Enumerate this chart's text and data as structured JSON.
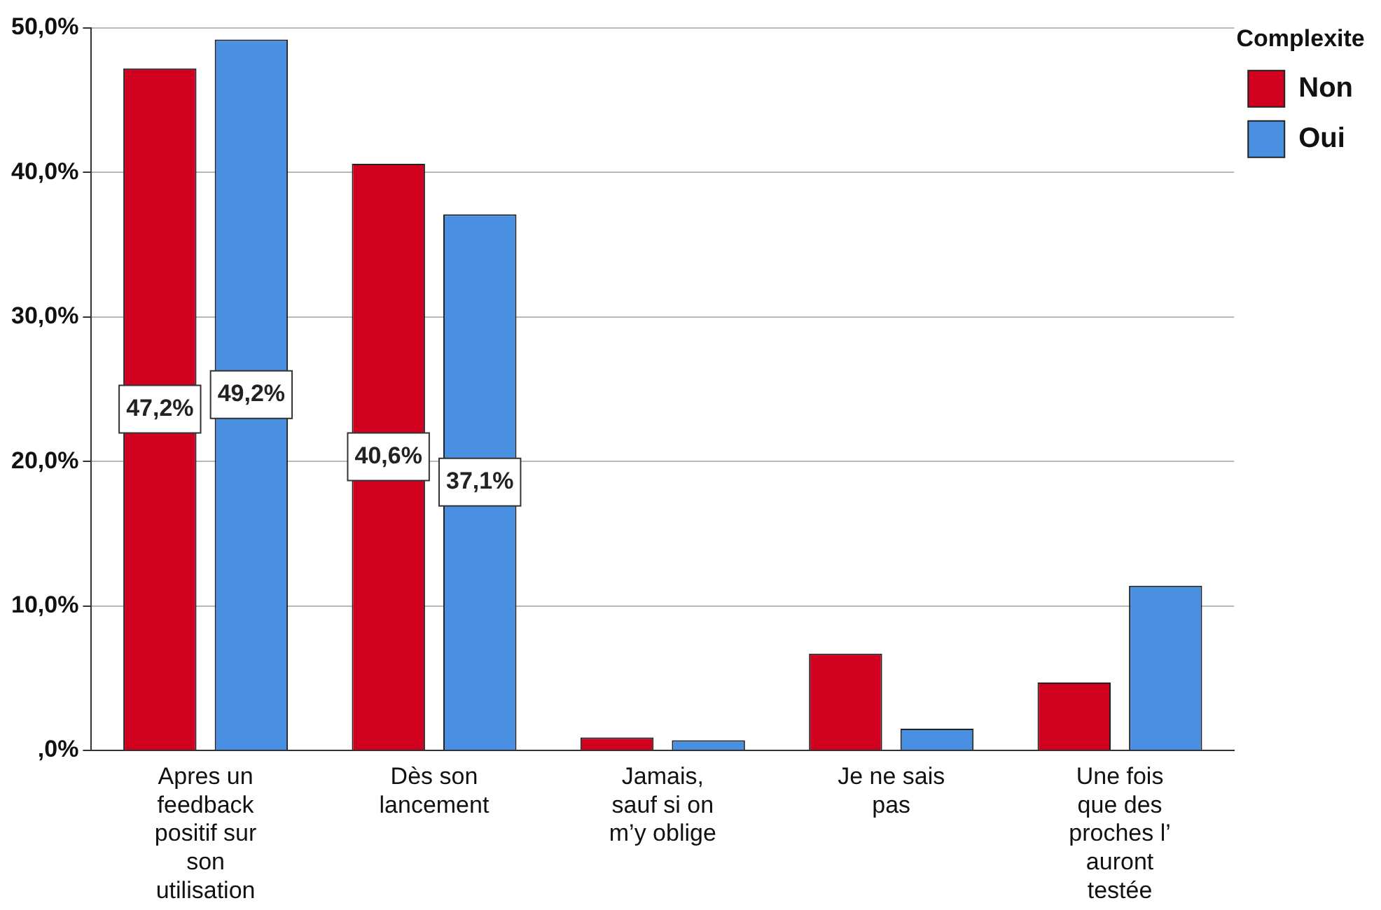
{
  "chart_data": {
    "type": "bar",
    "legend_title": "Complexite",
    "legend": "top right",
    "grid": "y",
    "categories": [
      "Apres un feedback positif sur son utilisation",
      "Dès son lancement",
      "Jamais, sauf si on m’y oblige",
      "Je ne sais pas",
      "Une fois que des proches l’ auront testée"
    ],
    "series": [
      {
        "name": "Non",
        "color": "#d1001f",
        "values": [
          47.2,
          40.6,
          0.9,
          6.7,
          4.7
        ],
        "value_labels": [
          "47,2%",
          "40,6%",
          null,
          null,
          null
        ]
      },
      {
        "name": "Oui",
        "color": "#4a90e2",
        "values": [
          49.2,
          37.1,
          0.7,
          1.5,
          11.4
        ],
        "value_labels": [
          "49,2%",
          "37,1%",
          null,
          null,
          null
        ]
      }
    ],
    "ylim": [
      0,
      50
    ],
    "yticks": [
      {
        "value": 0,
        "label": ",0%"
      },
      {
        "value": 10,
        "label": "10,0%"
      },
      {
        "value": 20,
        "label": "20,0%"
      },
      {
        "value": 30,
        "label": "30,0%"
      },
      {
        "value": 40,
        "label": "40,0%"
      },
      {
        "value": 50,
        "label": "50,0%"
      }
    ]
  }
}
